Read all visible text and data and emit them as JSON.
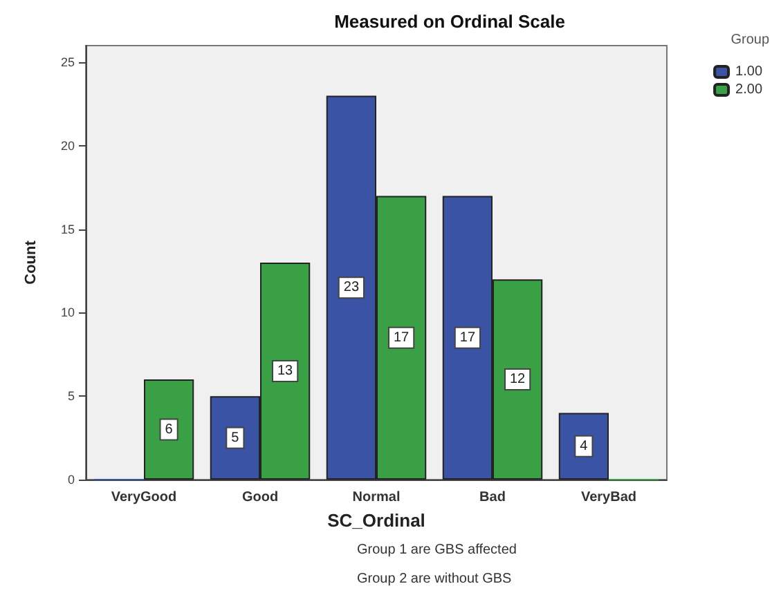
{
  "chart_data": {
    "type": "bar",
    "title": "Measured on Ordinal Scale",
    "xlabel": "SC_Ordinal",
    "ylabel": "Count",
    "legend_title": "Group",
    "categories": [
      "VeryGood",
      "Good",
      "Normal",
      "Bad",
      "VeryBad"
    ],
    "series": [
      {
        "name": "1.00",
        "color": "#3a53a4",
        "values": [
          0,
          5,
          23,
          17,
          4
        ],
        "value_labels": [
          null,
          "5",
          "23",
          "17",
          "4"
        ]
      },
      {
        "name": "2.00",
        "color": "#3aa046",
        "values": [
          6,
          13,
          17,
          12,
          0
        ],
        "value_labels": [
          "6",
          "13",
          "17",
          "12",
          null
        ]
      }
    ],
    "ylim": [
      0,
      26
    ],
    "yticks": [
      0,
      5,
      10,
      15,
      20,
      25
    ],
    "grid": false,
    "legend": "top right",
    "annotations": [
      "Group 1 are GBS affected",
      "Group 2 are without GBS"
    ]
  }
}
